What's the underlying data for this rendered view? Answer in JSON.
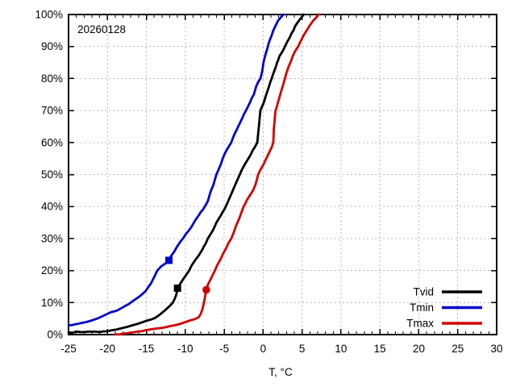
{
  "chart_data": {
    "type": "line",
    "subtype": "empirical-cdf",
    "annotation": "20260128",
    "title": "",
    "xlabel": "T, °C",
    "ylabel": "",
    "xlim": [
      -25,
      30
    ],
    "ylim": [
      0,
      100
    ],
    "x_ticks": [
      -25,
      -20,
      -15,
      -10,
      -5,
      0,
      5,
      10,
      15,
      20,
      25,
      30
    ],
    "x_minor_step": 1,
    "y_ticks": [
      0,
      10,
      20,
      30,
      40,
      50,
      60,
      70,
      80,
      90,
      100
    ],
    "y_tick_suffix": "%",
    "grid": true,
    "legend_position": "bottom-right",
    "series": [
      {
        "name": "Tvid",
        "color": "#000000",
        "marker_shape": "square",
        "marker_at": [
          -11,
          14.5
        ],
        "points": [
          [
            -25,
            0.7
          ],
          [
            -23.5,
            0.8
          ],
          [
            -22,
            0.9
          ],
          [
            -20.5,
            1
          ],
          [
            -19.5,
            1.3
          ],
          [
            -18.8,
            1.6
          ],
          [
            -18.2,
            2
          ],
          [
            -17.5,
            2.4
          ],
          [
            -16.8,
            2.9
          ],
          [
            -16.2,
            3.3
          ],
          [
            -15.6,
            3.8
          ],
          [
            -15,
            4.3
          ],
          [
            -14.4,
            4.7
          ],
          [
            -13.9,
            5.2
          ],
          [
            -13.4,
            6
          ],
          [
            -13,
            6.8
          ],
          [
            -12.6,
            7.6
          ],
          [
            -12.2,
            8.5
          ],
          [
            -11.9,
            9.2
          ],
          [
            -11.6,
            10
          ],
          [
            -11.3,
            11.5
          ],
          [
            -11.1,
            13
          ],
          [
            -11,
            14.5
          ],
          [
            -10.7,
            15.7
          ],
          [
            -10.3,
            17.2
          ],
          [
            -9.9,
            18.6
          ],
          [
            -9.5,
            20
          ],
          [
            -9.2,
            21.5
          ],
          [
            -8.8,
            23
          ],
          [
            -8.5,
            24
          ],
          [
            -8.2,
            25
          ],
          [
            -7.8,
            26.6
          ],
          [
            -7.4,
            28.3
          ],
          [
            -7.1,
            30
          ],
          [
            -6.7,
            31.6
          ],
          [
            -6.3,
            33.3
          ],
          [
            -6,
            35
          ],
          [
            -5.6,
            36.6
          ],
          [
            -5.2,
            38.3
          ],
          [
            -4.8,
            40
          ],
          [
            -4.5,
            41.6
          ],
          [
            -4.2,
            43.3
          ],
          [
            -3.9,
            45
          ],
          [
            -3.6,
            46.7
          ],
          [
            -3.3,
            48.4
          ],
          [
            -3,
            50
          ],
          [
            -2.7,
            51.7
          ],
          [
            -2.3,
            53.4
          ],
          [
            -1.9,
            55
          ],
          [
            -1.5,
            56.7
          ],
          [
            -1.1,
            58.4
          ],
          [
            -0.75,
            60
          ],
          [
            -0.65,
            62.5
          ],
          [
            -0.55,
            65
          ],
          [
            -0.45,
            67.5
          ],
          [
            -0.35,
            70
          ],
          [
            0,
            72
          ],
          [
            0.4,
            75
          ],
          [
            0.75,
            77.5
          ],
          [
            1.1,
            80
          ],
          [
            1.45,
            82.5
          ],
          [
            1.8,
            85
          ],
          [
            2.1,
            87
          ],
          [
            2.5,
            88.5
          ],
          [
            2.8,
            90
          ],
          [
            3.1,
            91.5
          ],
          [
            3.5,
            93.3
          ],
          [
            3.9,
            95
          ],
          [
            4.1,
            96.3
          ],
          [
            4.4,
            97.4
          ],
          [
            4.7,
            98.4
          ],
          [
            5,
            99.3
          ],
          [
            5.2,
            100
          ]
        ]
      },
      {
        "name": "Tmin",
        "color": "#0000cc",
        "marker_shape": "square",
        "marker_at": [
          -12.1,
          23.2
        ],
        "points": [
          [
            -25,
            3
          ],
          [
            -24.2,
            3.2
          ],
          [
            -23.4,
            3.6
          ],
          [
            -22.6,
            4
          ],
          [
            -21.9,
            4.5
          ],
          [
            -21.3,
            5
          ],
          [
            -20.6,
            5.8
          ],
          [
            -20,
            6.5
          ],
          [
            -19.2,
            7.2
          ],
          [
            -18.4,
            8
          ],
          [
            -17.7,
            9
          ],
          [
            -17,
            10
          ],
          [
            -16.3,
            11.2
          ],
          [
            -15.6,
            12.5
          ],
          [
            -15.1,
            13.6
          ],
          [
            -14.7,
            15
          ],
          [
            -14.2,
            17
          ],
          [
            -13.9,
            18.5
          ],
          [
            -13.6,
            20
          ],
          [
            -13.1,
            21.3
          ],
          [
            -12.5,
            22.3
          ],
          [
            -12.1,
            23.2
          ],
          [
            -11.7,
            25
          ],
          [
            -11.1,
            27.3
          ],
          [
            -10.3,
            30
          ],
          [
            -9.9,
            31.5
          ],
          [
            -9.4,
            33
          ],
          [
            -8.9,
            35
          ],
          [
            -8.5,
            36.5
          ],
          [
            -8,
            38.3
          ],
          [
            -7.5,
            40
          ],
          [
            -7.1,
            41.7
          ],
          [
            -6.9,
            43.4
          ],
          [
            -6.7,
            45
          ],
          [
            -6.4,
            46.7
          ],
          [
            -6.2,
            48.4
          ],
          [
            -6,
            50
          ],
          [
            -5.7,
            51.7
          ],
          [
            -5.4,
            53.4
          ],
          [
            -5.2,
            55
          ],
          [
            -4.9,
            56.7
          ],
          [
            -4.5,
            58.4
          ],
          [
            -4.1,
            60
          ],
          [
            -3.7,
            62.5
          ],
          [
            -3.2,
            65
          ],
          [
            -2.7,
            67.5
          ],
          [
            -2.2,
            70
          ],
          [
            -1.7,
            72.5
          ],
          [
            -1.2,
            75
          ],
          [
            -0.9,
            77.5
          ],
          [
            -0.35,
            80
          ],
          [
            -0.1,
            82.5
          ],
          [
            0.05,
            85
          ],
          [
            0.3,
            87.5
          ],
          [
            0.6,
            90
          ],
          [
            0.85,
            92
          ],
          [
            1.1,
            93.5
          ],
          [
            1.3,
            95
          ],
          [
            1.6,
            96.5
          ],
          [
            1.9,
            98
          ],
          [
            2.3,
            99.2
          ],
          [
            2.6,
            100
          ]
        ]
      },
      {
        "name": "Tmax",
        "color": "#d00000",
        "marker_shape": "circle",
        "marker_at": [
          -7.3,
          14
        ],
        "points": [
          [
            -19,
            0.1
          ],
          [
            -18,
            0.3
          ],
          [
            -17,
            0.6
          ],
          [
            -16,
            1
          ],
          [
            -15.2,
            1.3
          ],
          [
            -14.5,
            1.6
          ],
          [
            -13.7,
            1.9
          ],
          [
            -13,
            2.1
          ],
          [
            -12.4,
            2.4
          ],
          [
            -11.8,
            2.7
          ],
          [
            -11.2,
            3
          ],
          [
            -10.6,
            3.4
          ],
          [
            -10,
            3.9
          ],
          [
            -9.4,
            4.4
          ],
          [
            -8.8,
            4.8
          ],
          [
            -8.3,
            5.4
          ],
          [
            -8,
            6.5
          ],
          [
            -7.8,
            8
          ],
          [
            -7.6,
            10
          ],
          [
            -7.45,
            12
          ],
          [
            -7.3,
            14
          ],
          [
            -7.1,
            15.6
          ],
          [
            -6.8,
            17
          ],
          [
            -6.5,
            18.5
          ],
          [
            -6.2,
            20
          ],
          [
            -5.9,
            21.7
          ],
          [
            -5.5,
            23.4
          ],
          [
            -5.2,
            25
          ],
          [
            -4.8,
            26.7
          ],
          [
            -4.5,
            28.4
          ],
          [
            -4.1,
            30
          ],
          [
            -3.7,
            32.4
          ],
          [
            -3.3,
            35
          ],
          [
            -2.9,
            37.4
          ],
          [
            -2.5,
            40
          ],
          [
            -2.1,
            42
          ],
          [
            -1.7,
            43.5
          ],
          [
            -1.3,
            45
          ],
          [
            -1,
            46.7
          ],
          [
            -0.8,
            48.4
          ],
          [
            -0.65,
            50
          ],
          [
            -0.3,
            51.7
          ],
          [
            0.1,
            53.4
          ],
          [
            0.4,
            55
          ],
          [
            0.8,
            57
          ],
          [
            1.1,
            58.5
          ],
          [
            1.3,
            60
          ],
          [
            1.35,
            62.5
          ],
          [
            1.4,
            65
          ],
          [
            1.5,
            67.5
          ],
          [
            1.6,
            70
          ],
          [
            1.9,
            72.5
          ],
          [
            2.2,
            75
          ],
          [
            2.5,
            77.5
          ],
          [
            2.8,
            80
          ],
          [
            3.1,
            82.5
          ],
          [
            3.5,
            85
          ],
          [
            3.8,
            87
          ],
          [
            4.1,
            88.5
          ],
          [
            4.5,
            90
          ],
          [
            4.9,
            92
          ],
          [
            5.2,
            93.5
          ],
          [
            5.6,
            95
          ],
          [
            6,
            96.6
          ],
          [
            6.4,
            98
          ],
          [
            6.8,
            99
          ],
          [
            7.1,
            100
          ]
        ]
      }
    ]
  },
  "colors": {
    "background": "#ffffff",
    "axis": "#000000",
    "grid": "#b8b8b8",
    "text": "#000000"
  }
}
